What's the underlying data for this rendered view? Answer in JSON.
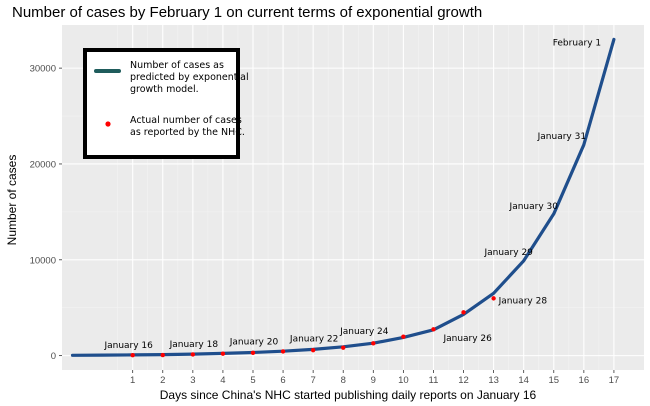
{
  "chart_data": {
    "type": "line",
    "title": "Number of cases by February 1 on current terms of exponential growth",
    "xlabel": "Days since China's NHC started publishing daily reports on January 16",
    "ylabel": "Number of cases",
    "xlim": [
      -1.35,
      18.0
    ],
    "ylim": [
      -1500,
      34500
    ],
    "x_ticks": [
      1,
      2,
      3,
      4,
      5,
      6,
      7,
      8,
      9,
      10,
      11,
      12,
      13,
      14,
      15,
      16,
      17
    ],
    "y_ticks": [
      0,
      10000,
      20000,
      30000
    ],
    "y_tick_labels": [
      "0",
      "10000",
      "20000",
      "30000"
    ],
    "grid": true,
    "legend_position": "top-left",
    "series": [
      {
        "name": "Number of cases as predicted by exponential growth model.",
        "kind": "line",
        "color": "#1f4e8c",
        "x": [
          -1,
          0,
          1,
          2,
          3,
          4,
          5,
          6,
          7,
          8,
          9,
          10,
          11,
          12,
          13,
          14,
          15,
          16,
          17
        ],
        "y": [
          30,
          50,
          80,
          110,
          160,
          230,
          330,
          460,
          650,
          920,
          1300,
          1900,
          2700,
          4300,
          6500,
          9900,
          14800,
          22000,
          33000
        ]
      },
      {
        "name": "Actual number of cases as reported by the NHC.",
        "kind": "points",
        "color": "#ff0000",
        "x": [
          1,
          2,
          3,
          4,
          5,
          6,
          7,
          8,
          9,
          10,
          11,
          12,
          13
        ],
        "y": [
          45,
          62,
          121,
          198,
          291,
          440,
          571,
          830,
          1287,
          1975,
          2744,
          4515,
          5974
        ]
      }
    ],
    "annotations": [
      {
        "text": "January 16",
        "x": 1,
        "y": 80
      },
      {
        "text": "January 18",
        "x": 3,
        "y": 160
      },
      {
        "text": "January 20",
        "x": 5,
        "y": 330
      },
      {
        "text": "January 22",
        "x": 7,
        "y": 650
      },
      {
        "text": "January 24",
        "x": 9,
        "y": 1300
      },
      {
        "text": "January 26",
        "x": 11,
        "y": 2700
      },
      {
        "text": "January 28",
        "x": 13,
        "y": 5974
      },
      {
        "text": "January 29",
        "x": 14,
        "y": 9900
      },
      {
        "text": "January 30",
        "x": 15,
        "y": 14800
      },
      {
        "text": "January 31",
        "x": 16,
        "y": 22000
      },
      {
        "text": "February 1",
        "x": 17,
        "y": 33000
      }
    ],
    "legend": {
      "line_label_lines": [
        "Number of cases as",
        "predicted by exponential",
        "growth model."
      ],
      "point_label_lines": [
        "Actual number of cases",
        "as reported by the NHC."
      ],
      "line_color": "#1f5c5c",
      "point_color": "#ff0000"
    },
    "colors": {
      "panel": "#ebebeb",
      "grid_major": "#ffffff",
      "grid_minor": "#f3f3f3",
      "tick_label": "#4d4d4d"
    }
  }
}
